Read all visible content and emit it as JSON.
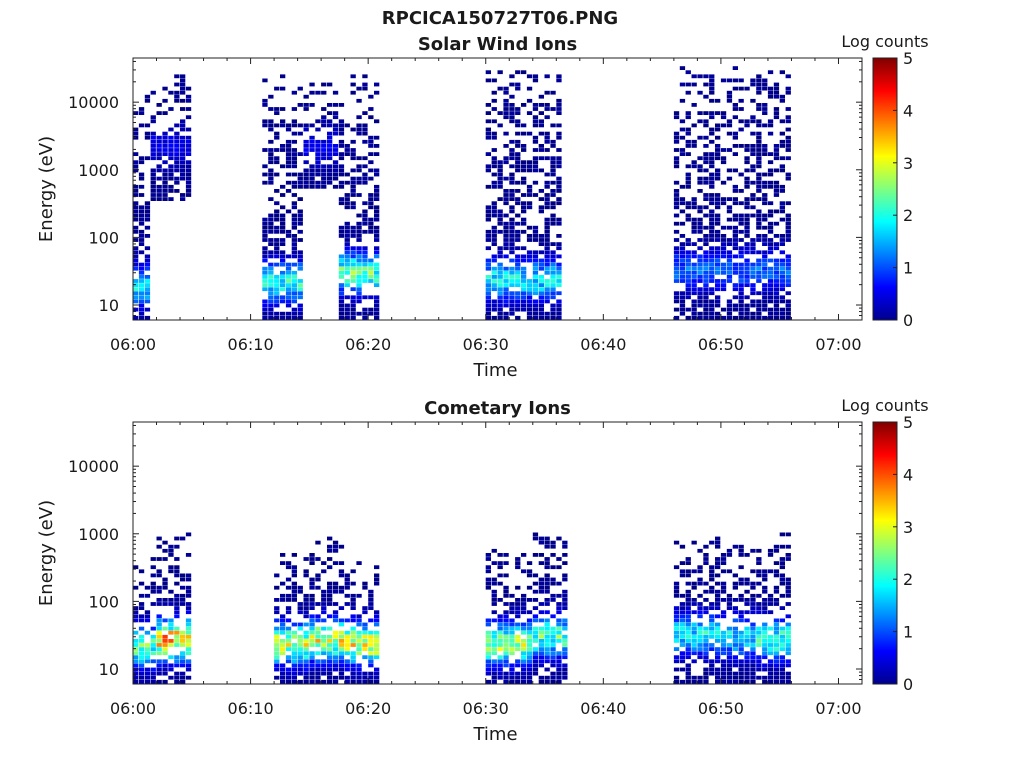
{
  "figure_title": "RPCICA150727T06.PNG",
  "colormap": [
    "#00008f",
    "#0000ff",
    "#0080ff",
    "#00ffff",
    "#80ff80",
    "#ffff00",
    "#ff8000",
    "#ff0000",
    "#800000"
  ],
  "chart_data": [
    {
      "type": "heatmap",
      "title": "Solar Wind Ions",
      "xlabel": "Time",
      "ylabel": "Energy (eV)",
      "y_scale": "log",
      "xlim": [
        "06:00",
        "07:02"
      ],
      "ylim": [
        6,
        45000
      ],
      "x_ticks": [
        "06:00",
        "06:10",
        "06:20",
        "06:30",
        "06:40",
        "06:50",
        "07:00"
      ],
      "y_ticks": [
        "10",
        "100",
        "1000",
        "10000"
      ],
      "colorbar": {
        "label": "Log counts",
        "range": [
          0,
          5
        ],
        "ticks": [
          "0",
          "1",
          "2",
          "3",
          "4",
          "5"
        ]
      },
      "bursts": [
        {
          "start": "06:00",
          "end": "06:01.5",
          "e_min": 6,
          "e_max": 15000,
          "peak_energy": 18,
          "peak_log_counts": 2.0
        },
        {
          "start": "06:01.5",
          "end": "06:04.6",
          "e_min": 300,
          "e_max": 25000,
          "peak_energy": 2000,
          "peak_log_counts": 0.5
        },
        {
          "start": "06:11",
          "end": "06:14.5",
          "e_min": 6,
          "e_max": 25000,
          "peak_energy": 20,
          "peak_log_counts": 2.2
        },
        {
          "start": "06:14.5",
          "end": "06:17.5",
          "e_min": 500,
          "e_max": 20000,
          "peak_energy": 2000,
          "peak_log_counts": 0.5
        },
        {
          "start": "06:17.5",
          "end": "06:21",
          "e_min": 6,
          "e_max": 25000,
          "peak_energy": 28,
          "peak_log_counts": 2.5
        },
        {
          "start": "06:30",
          "end": "06:36.5",
          "e_min": 6,
          "e_max": 28000,
          "peak_energy": 22,
          "peak_log_counts": 2.0
        },
        {
          "start": "06:46",
          "end": "06:56",
          "e_min": 6,
          "e_max": 30000,
          "peak_energy": 30,
          "peak_log_counts": 1.2
        }
      ]
    },
    {
      "type": "heatmap",
      "title": "Cometary Ions",
      "xlabel": "Time",
      "ylabel": "Energy (eV)",
      "y_scale": "log",
      "xlim": [
        "06:00",
        "07:02"
      ],
      "ylim": [
        6,
        45000
      ],
      "x_ticks": [
        "06:00",
        "06:10",
        "06:20",
        "06:30",
        "06:40",
        "06:50",
        "07:00"
      ],
      "y_ticks": [
        "10",
        "100",
        "1000",
        "10000"
      ],
      "colorbar": {
        "label": "Log counts",
        "range": [
          0,
          5
        ],
        "ticks": [
          "0",
          "1",
          "2",
          "3",
          "4",
          "5"
        ]
      },
      "bursts": [
        {
          "start": "06:00",
          "end": "06:02",
          "e_min": 6,
          "e_max": 400,
          "peak_energy": 20,
          "peak_log_counts": 2.6
        },
        {
          "start": "06:02",
          "end": "06:05",
          "e_min": 6,
          "e_max": 1100,
          "peak_energy": 25,
          "peak_log_counts": 3.8
        },
        {
          "start": "06:12",
          "end": "06:15",
          "e_min": 6,
          "e_max": 500,
          "peak_energy": 22,
          "peak_log_counts": 3.2
        },
        {
          "start": "06:15",
          "end": "06:18",
          "e_min": 6,
          "e_max": 900,
          "peak_energy": 25,
          "peak_log_counts": 3.3
        },
        {
          "start": "06:18",
          "end": "06:21",
          "e_min": 6,
          "e_max": 400,
          "peak_energy": 22,
          "peak_log_counts": 3.4
        },
        {
          "start": "06:30",
          "end": "06:34",
          "e_min": 6,
          "e_max": 600,
          "peak_energy": 22,
          "peak_log_counts": 3.0
        },
        {
          "start": "06:34",
          "end": "06:37",
          "e_min": 6,
          "e_max": 1000,
          "peak_energy": 28,
          "peak_log_counts": 2.5
        },
        {
          "start": "06:46",
          "end": "06:50",
          "e_min": 6,
          "e_max": 900,
          "peak_energy": 30,
          "peak_log_counts": 2.0
        },
        {
          "start": "06:50",
          "end": "06:53",
          "e_min": 6,
          "e_max": 600,
          "peak_energy": 28,
          "peak_log_counts": 2.0
        },
        {
          "start": "06:53",
          "end": "06:56",
          "e_min": 6,
          "e_max": 1000,
          "peak_energy": 25,
          "peak_log_counts": 2.4
        }
      ]
    }
  ]
}
